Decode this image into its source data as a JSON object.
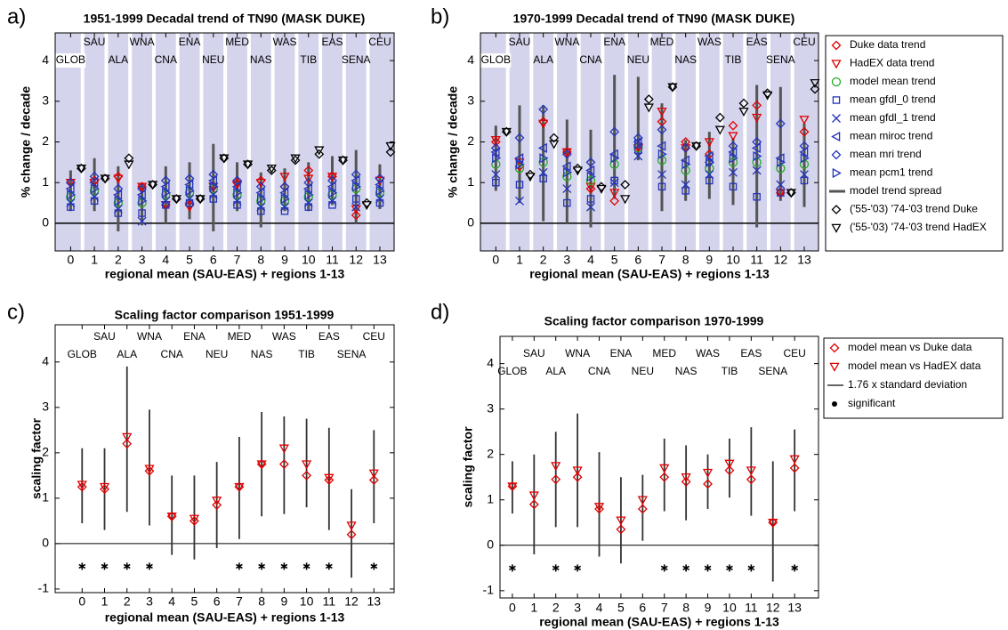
{
  "chart_data": [
    {
      "type": "trend",
      "panel_label": "a)",
      "title": "1951-1999 Decadal trend of TN90 (MASK DUKE)",
      "xlabel": "regional mean (SAU-EAS) + regions 1-13",
      "ylabel": "% change / decade",
      "x": [
        0,
        1,
        2,
        3,
        4,
        5,
        6,
        7,
        8,
        9,
        10,
        11,
        12,
        13
      ],
      "xticks": [
        0,
        1,
        2,
        3,
        4,
        5,
        6,
        7,
        8,
        9,
        10,
        11,
        12,
        13
      ],
      "xlim": [
        -0.65,
        13.6
      ],
      "ylim": [
        -0.68,
        4.68
      ],
      "yticks": [
        0,
        1,
        2,
        3,
        4
      ],
      "shade": "#d4d4ec",
      "region_color": "#2aa52a",
      "regions": [
        "GLOB",
        "SAU",
        "ALA",
        "WNA",
        "CNA",
        "ENA",
        "NEU",
        "MED",
        "NAS",
        "WAS",
        "TIB",
        "EAS",
        "SENA",
        "CEU"
      ],
      "series": [
        {
          "color": "#e00000",
          "marker": "diamond",
          "values": [
            1.0,
            1.05,
            1.15,
            0.9,
            0.45,
            0.45,
            0.9,
            1.0,
            1.05,
            0.9,
            1.3,
            1.15,
            0.2,
            1.1
          ]
        },
        {
          "color": "#e00000",
          "marker": "tri-down",
          "values": [
            1.0,
            1.0,
            1.1,
            0.9,
            0.45,
            0.4,
            0.9,
            0.95,
            1.0,
            1.15,
            1.1,
            1.15,
            0.35,
            1.05
          ]
        },
        {
          "color": "#22aa22",
          "marker": "circle",
          "values": [
            0.65,
            0.8,
            0.5,
            0.5,
            0.7,
            0.75,
            0.85,
            0.7,
            0.55,
            0.55,
            0.65,
            0.7,
            0.85,
            0.75
          ]
        },
        {
          "color": "#2233bb",
          "marker": "square",
          "values": [
            0.4,
            0.55,
            0.25,
            0.25,
            0.45,
            0.5,
            0.6,
            0.45,
            0.3,
            0.3,
            0.4,
            0.45,
            0.6,
            0.5
          ]
        },
        {
          "color": "#2233bb",
          "marker": "x",
          "values": [
            0.5,
            0.65,
            0.35,
            0.05,
            0.55,
            0.6,
            0.7,
            0.55,
            0.4,
            0.4,
            0.5,
            0.55,
            0.4,
            0.6
          ]
        },
        {
          "color": "#2233bb",
          "marker": "tri-left",
          "values": [
            0.85,
            1.0,
            0.7,
            0.7,
            0.9,
            0.95,
            1.05,
            0.9,
            0.75,
            0.75,
            0.85,
            0.9,
            1.05,
            0.95
          ]
        },
        {
          "color": "#2233bb",
          "marker": "diamond",
          "values": [
            1.0,
            1.15,
            0.85,
            0.85,
            1.05,
            1.1,
            1.2,
            1.05,
            0.9,
            0.9,
            1.0,
            1.05,
            1.2,
            1.1
          ]
        },
        {
          "color": "#2233bb",
          "marker": "tri-right",
          "values": [
            0.7,
            0.85,
            0.55,
            0.55,
            0.75,
            0.8,
            0.9,
            0.75,
            0.6,
            0.6,
            0.7,
            0.75,
            0.9,
            0.8
          ]
        },
        {
          "color": "#555555",
          "marker": "bar",
          "low": [
            0.3,
            0.3,
            -0.2,
            -0.05,
            0.0,
            0.1,
            -0.2,
            0.3,
            -0.1,
            0.3,
            0.3,
            0.45,
            0.0,
            0.35
          ],
          "high": [
            1.3,
            1.6,
            1.4,
            1.0,
            1.4,
            1.5,
            1.95,
            1.5,
            1.25,
            1.35,
            1.5,
            1.65,
            1.8,
            1.45
          ]
        },
        {
          "color": "#000000",
          "marker": "diamond",
          "values": [
            1.35,
            1.1,
            1.6,
            0.95,
            0.6,
            0.6,
            1.6,
            1.45,
            1.3,
            1.55,
            1.7,
            1.55,
            0.5,
            1.75
          ]
        },
        {
          "color": "#000000",
          "marker": "tri-down",
          "values": [
            1.35,
            1.1,
            1.45,
            0.95,
            0.6,
            0.6,
            1.6,
            1.45,
            1.35,
            1.6,
            1.8,
            1.55,
            0.45,
            1.9
          ]
        }
      ]
    },
    {
      "type": "trend",
      "panel_label": "b)",
      "title": "1970-1999 Decadal trend of TN90 (MASK DUKE)",
      "xlabel": "regional mean (SAU-EAS) + regions 1-13",
      "ylabel": "% change / decade",
      "x": [
        0,
        1,
        2,
        3,
        4,
        5,
        6,
        7,
        8,
        9,
        10,
        11,
        12,
        13
      ],
      "xticks": [
        0,
        1,
        2,
        3,
        4,
        5,
        6,
        7,
        8,
        9,
        10,
        11,
        12,
        13
      ],
      "xlim": [
        -0.65,
        13.6
      ],
      "ylim": [
        -0.68,
        4.68
      ],
      "yticks": [
        0,
        1,
        2,
        3,
        4
      ],
      "shade": "#d4d4ec",
      "region_color": "#2aa52a",
      "legend": "outside-right",
      "regions": [
        "GLOB",
        "SAU",
        "ALA",
        "WNA",
        "CNA",
        "ENA",
        "NEU",
        "MED",
        "NAS",
        "WAS",
        "TIB",
        "EAS",
        "SENA",
        "CEU"
      ],
      "series": [
        {
          "name": "Duke data trend",
          "color": "#e00000",
          "marker": "diamond",
          "values": [
            2.0,
            1.4,
            2.5,
            1.75,
            0.85,
            0.55,
            1.9,
            2.5,
            2.0,
            1.7,
            2.4,
            2.9,
            0.75,
            2.25
          ]
        },
        {
          "name": "HadEX data trend",
          "color": "#e00000",
          "marker": "tri-down",
          "values": [
            2.05,
            1.5,
            2.45,
            1.75,
            0.9,
            0.75,
            1.85,
            2.75,
            1.85,
            2.0,
            2.15,
            2.6,
            0.75,
            2.55
          ]
        },
        {
          "name": "model mean trend",
          "color": "#22aa22",
          "marker": "circle",
          "values": [
            1.45,
            1.35,
            1.5,
            1.15,
            1.05,
            1.45,
            1.85,
            1.55,
            1.3,
            1.35,
            1.5,
            1.5,
            1.35,
            1.45
          ]
        },
        {
          "name": "mean gfdl_0 trend",
          "color": "#2233bb",
          "marker": "square",
          "values": [
            1.0,
            0.95,
            1.1,
            0.5,
            0.6,
            1.05,
            1.8,
            0.9,
            0.8,
            1.05,
            0.9,
            0.65,
            0.75,
            1.05
          ]
        },
        {
          "name": "mean gfdl_1 trend",
          "color": "#2233bb",
          "marker": "x",
          "values": [
            1.2,
            0.55,
            1.25,
            0.85,
            0.4,
            1.0,
            1.65,
            1.2,
            0.95,
            1.2,
            1.25,
            1.3,
            0.95,
            1.2
          ]
        },
        {
          "name": "mean miroc trend",
          "color": "#2233bb",
          "marker": "tri-left",
          "values": [
            1.75,
            1.6,
            1.85,
            1.4,
            1.3,
            1.7,
            2.0,
            1.9,
            1.55,
            1.65,
            1.75,
            1.85,
            1.6,
            1.75
          ]
        },
        {
          "name": "mean mri trend",
          "color": "#2233bb",
          "marker": "diamond",
          "values": [
            1.85,
            2.1,
            2.8,
            1.7,
            1.5,
            2.25,
            2.1,
            2.3,
            1.85,
            1.5,
            1.9,
            2.0,
            2.45,
            1.9
          ]
        },
        {
          "name": "mean pcm1 trend",
          "color": "#2233bb",
          "marker": "tri-right",
          "values": [
            1.6,
            1.45,
            1.6,
            1.25,
            1.15,
            1.6,
            1.95,
            1.7,
            1.45,
            1.5,
            1.6,
            1.65,
            1.5,
            1.6
          ]
        },
        {
          "name": "model trend spread",
          "color": "#555555",
          "marker": "bar",
          "low": [
            0.8,
            0.5,
            0.05,
            0.0,
            -0.1,
            0.6,
            1.55,
            0.3,
            0.55,
            0.6,
            0.45,
            -0.1,
            0.55,
            0.4
          ],
          "high": [
            2.4,
            2.9,
            2.9,
            2.55,
            2.3,
            3.65,
            3.6,
            2.95,
            2.05,
            2.25,
            2.1,
            3.4,
            3.35,
            2.45
          ]
        },
        {
          "name": "('55-'03) '74-'03 trend Duke",
          "color": "#000000",
          "marker": "diamond",
          "values": [
            2.25,
            1.2,
            2.1,
            1.35,
            0.9,
            0.95,
            3.05,
            3.35,
            1.9,
            2.6,
            2.95,
            3.2,
            0.75,
            3.3
          ]
        },
        {
          "name": "('55-'03) '74-'03 trend HadEX",
          "color": "#000000",
          "marker": "tri-down",
          "values": [
            2.25,
            1.15,
            1.95,
            1.3,
            0.85,
            0.6,
            2.85,
            3.35,
            1.9,
            2.3,
            2.75,
            3.15,
            0.75,
            3.45
          ]
        }
      ]
    },
    {
      "type": "scaling",
      "panel_label": "c)",
      "title": "Scaling factor comparison 1951-1999",
      "xlabel": "regional mean (SAU-EAS) + regions 1-13",
      "ylabel": "scaling factor",
      "x": [
        0,
        1,
        2,
        3,
        4,
        5,
        6,
        7,
        8,
        9,
        10,
        11,
        12,
        13
      ],
      "xticks": [
        0,
        1,
        2,
        3,
        4,
        5,
        6,
        7,
        8,
        9,
        10,
        11,
        12,
        13
      ],
      "xlim": [
        -1.2,
        13.9
      ],
      "ylim": [
        -1.08,
        4.82
      ],
      "yticks": [
        -1,
        0,
        1,
        2,
        3,
        4
      ],
      "region_color": "#2aa52a",
      "regions": [
        "GLOB",
        "SAU",
        "ALA",
        "WNA",
        "CNA",
        "ENA",
        "NEU",
        "MED",
        "NAS",
        "WAS",
        "TIB",
        "EAS",
        "SENA",
        "CEU"
      ],
      "series": [
        {
          "color": "#e00000",
          "marker": "diamond",
          "values": [
            1.25,
            1.2,
            2.2,
            1.6,
            0.6,
            0.5,
            0.85,
            1.25,
            1.75,
            1.75,
            1.5,
            1.4,
            0.2,
            1.4
          ]
        },
        {
          "color": "#e00000",
          "marker": "tri-down",
          "values": [
            1.3,
            1.25,
            2.35,
            1.65,
            0.6,
            0.55,
            0.95,
            1.25,
            1.75,
            2.1,
            1.75,
            1.45,
            0.4,
            1.55
          ]
        },
        {
          "color": "#333333",
          "marker": "bar",
          "low": [
            0.45,
            0.3,
            0.7,
            0.4,
            -0.25,
            -0.35,
            -0.1,
            0.1,
            0.6,
            0.65,
            0.8,
            0.3,
            -0.75,
            0.45
          ],
          "high": [
            2.1,
            2.1,
            3.9,
            2.95,
            1.5,
            1.5,
            1.8,
            2.35,
            2.9,
            2.8,
            2.75,
            2.55,
            1.2,
            2.5
          ]
        },
        {
          "color": "#000000",
          "marker": "star",
          "values": [
            -0.5,
            -0.5,
            -0.5,
            -0.5,
            null,
            null,
            null,
            -0.5,
            -0.5,
            -0.5,
            -0.5,
            -0.5,
            null,
            -0.5
          ]
        }
      ]
    },
    {
      "type": "scaling",
      "panel_label": "d)",
      "title": "Scaling factor comparison 1970-1999",
      "xlabel": "regional mean (SAU-EAS) + regions 1-13",
      "ylabel": "scaling factor",
      "x": [
        0,
        1,
        2,
        3,
        4,
        5,
        6,
        7,
        8,
        9,
        10,
        11,
        12,
        13
      ],
      "xticks": [
        0,
        1,
        2,
        3,
        4,
        5,
        6,
        7,
        8,
        9,
        10,
        11,
        12,
        13
      ],
      "xlim": [
        -0.57,
        14.1
      ],
      "ylim": [
        -1.16,
        4.6
      ],
      "yticks": [
        -1,
        0,
        1,
        2,
        3,
        4
      ],
      "region_color": "#2aa52a",
      "legend": "outside-right",
      "regions": [
        "GLOB",
        "SAU",
        "ALA",
        "WNA",
        "CNA",
        "ENA",
        "NEU",
        "MED",
        "NAS",
        "WAS",
        "TIB",
        "EAS",
        "SENA",
        "CEU"
      ],
      "series": [
        {
          "name": "model mean vs Duke data",
          "color": "#e00000",
          "marker": "diamond",
          "values": [
            1.3,
            0.9,
            1.45,
            1.5,
            0.8,
            0.35,
            0.8,
            1.5,
            1.4,
            1.35,
            1.65,
            1.45,
            0.5,
            1.7
          ]
        },
        {
          "name": "model mean vs HadEX data",
          "color": "#e00000",
          "marker": "tri-down",
          "values": [
            1.3,
            1.1,
            1.75,
            1.65,
            0.85,
            0.55,
            1.0,
            1.7,
            1.5,
            1.6,
            1.8,
            1.65,
            0.5,
            1.9
          ]
        },
        {
          "name": "1.76 x standard deviation",
          "color": "#333333",
          "marker": "bar",
          "low": [
            0.7,
            -0.2,
            0.4,
            0.4,
            -0.25,
            -0.4,
            0.1,
            0.75,
            0.55,
            0.8,
            1.05,
            0.65,
            -0.8,
            0.75
          ],
          "high": [
            1.85,
            2.0,
            2.5,
            2.9,
            2.05,
            1.5,
            1.55,
            2.35,
            2.2,
            2.0,
            2.35,
            2.6,
            1.85,
            2.55
          ]
        },
        {
          "name": "significant",
          "color": "#000000",
          "marker": "star",
          "values": [
            -0.5,
            null,
            -0.5,
            -0.5,
            null,
            null,
            null,
            -0.5,
            -0.5,
            -0.5,
            -0.5,
            -0.5,
            null,
            -0.5
          ]
        }
      ]
    }
  ]
}
